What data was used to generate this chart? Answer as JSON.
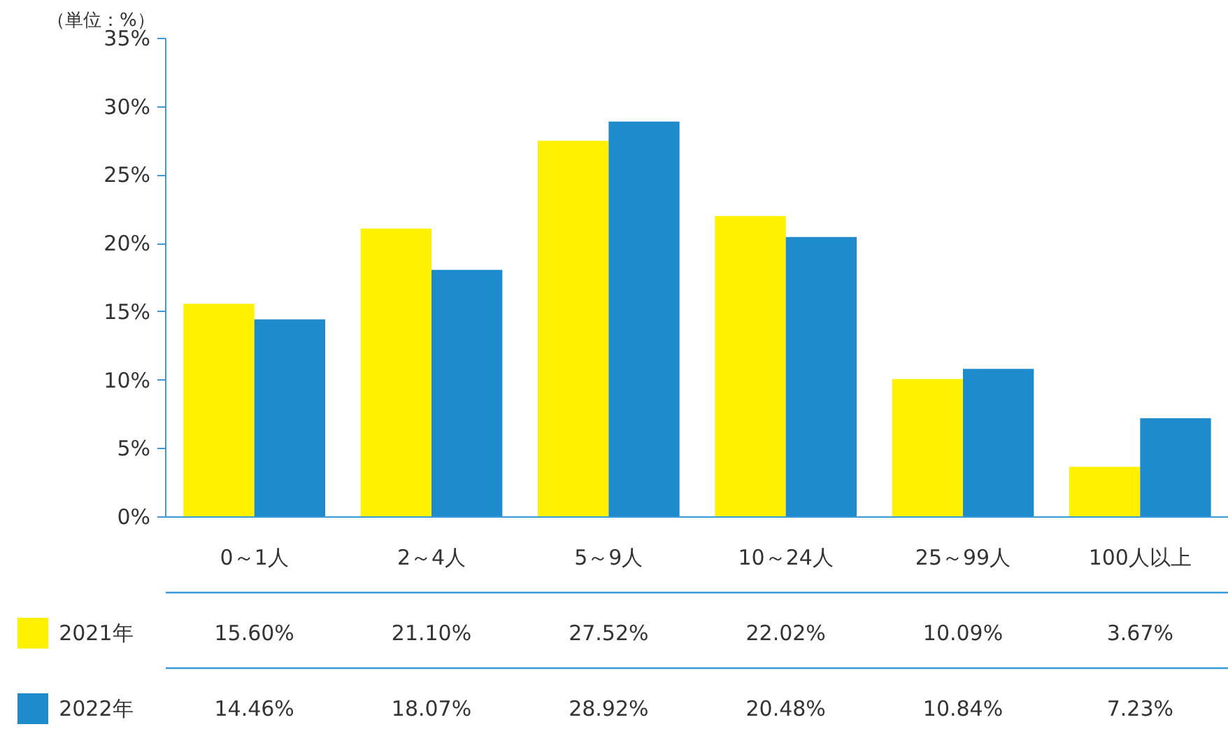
{
  "chart_data": {
    "type": "bar",
    "ylabel": "（単位：%）",
    "categories": [
      "0～1人",
      "2～4人",
      "5～9人",
      "10～24人",
      "25～99人",
      "100人以上"
    ],
    "series": [
      {
        "name": "2021年",
        "color": "#fff100",
        "values": [
          15.6,
          21.1,
          27.52,
          22.02,
          10.09,
          3.67
        ],
        "value_labels": [
          "15.60%",
          "21.10%",
          "27.52%",
          "22.02%",
          "10.09%",
          "3.67%"
        ]
      },
      {
        "name": "2022年",
        "color": "#1e8bcd",
        "values": [
          14.46,
          18.07,
          28.92,
          20.48,
          10.84,
          7.23
        ],
        "value_labels": [
          "14.46%",
          "18.07%",
          "28.92%",
          "20.48%",
          "10.84%",
          "7.23%"
        ]
      }
    ],
    "ylim": [
      0,
      35
    ],
    "yticks": [
      {
        "value": 0,
        "label": "0%"
      },
      {
        "value": 5,
        "label": "5%"
      },
      {
        "value": 10,
        "label": "10%"
      },
      {
        "value": 15,
        "label": "15%"
      },
      {
        "value": 20,
        "label": "20%"
      },
      {
        "value": 25,
        "label": "25%"
      },
      {
        "value": 30,
        "label": "30%"
      },
      {
        "value": 35,
        "label": "35%"
      }
    ],
    "grid": false,
    "legend": "bottom"
  }
}
